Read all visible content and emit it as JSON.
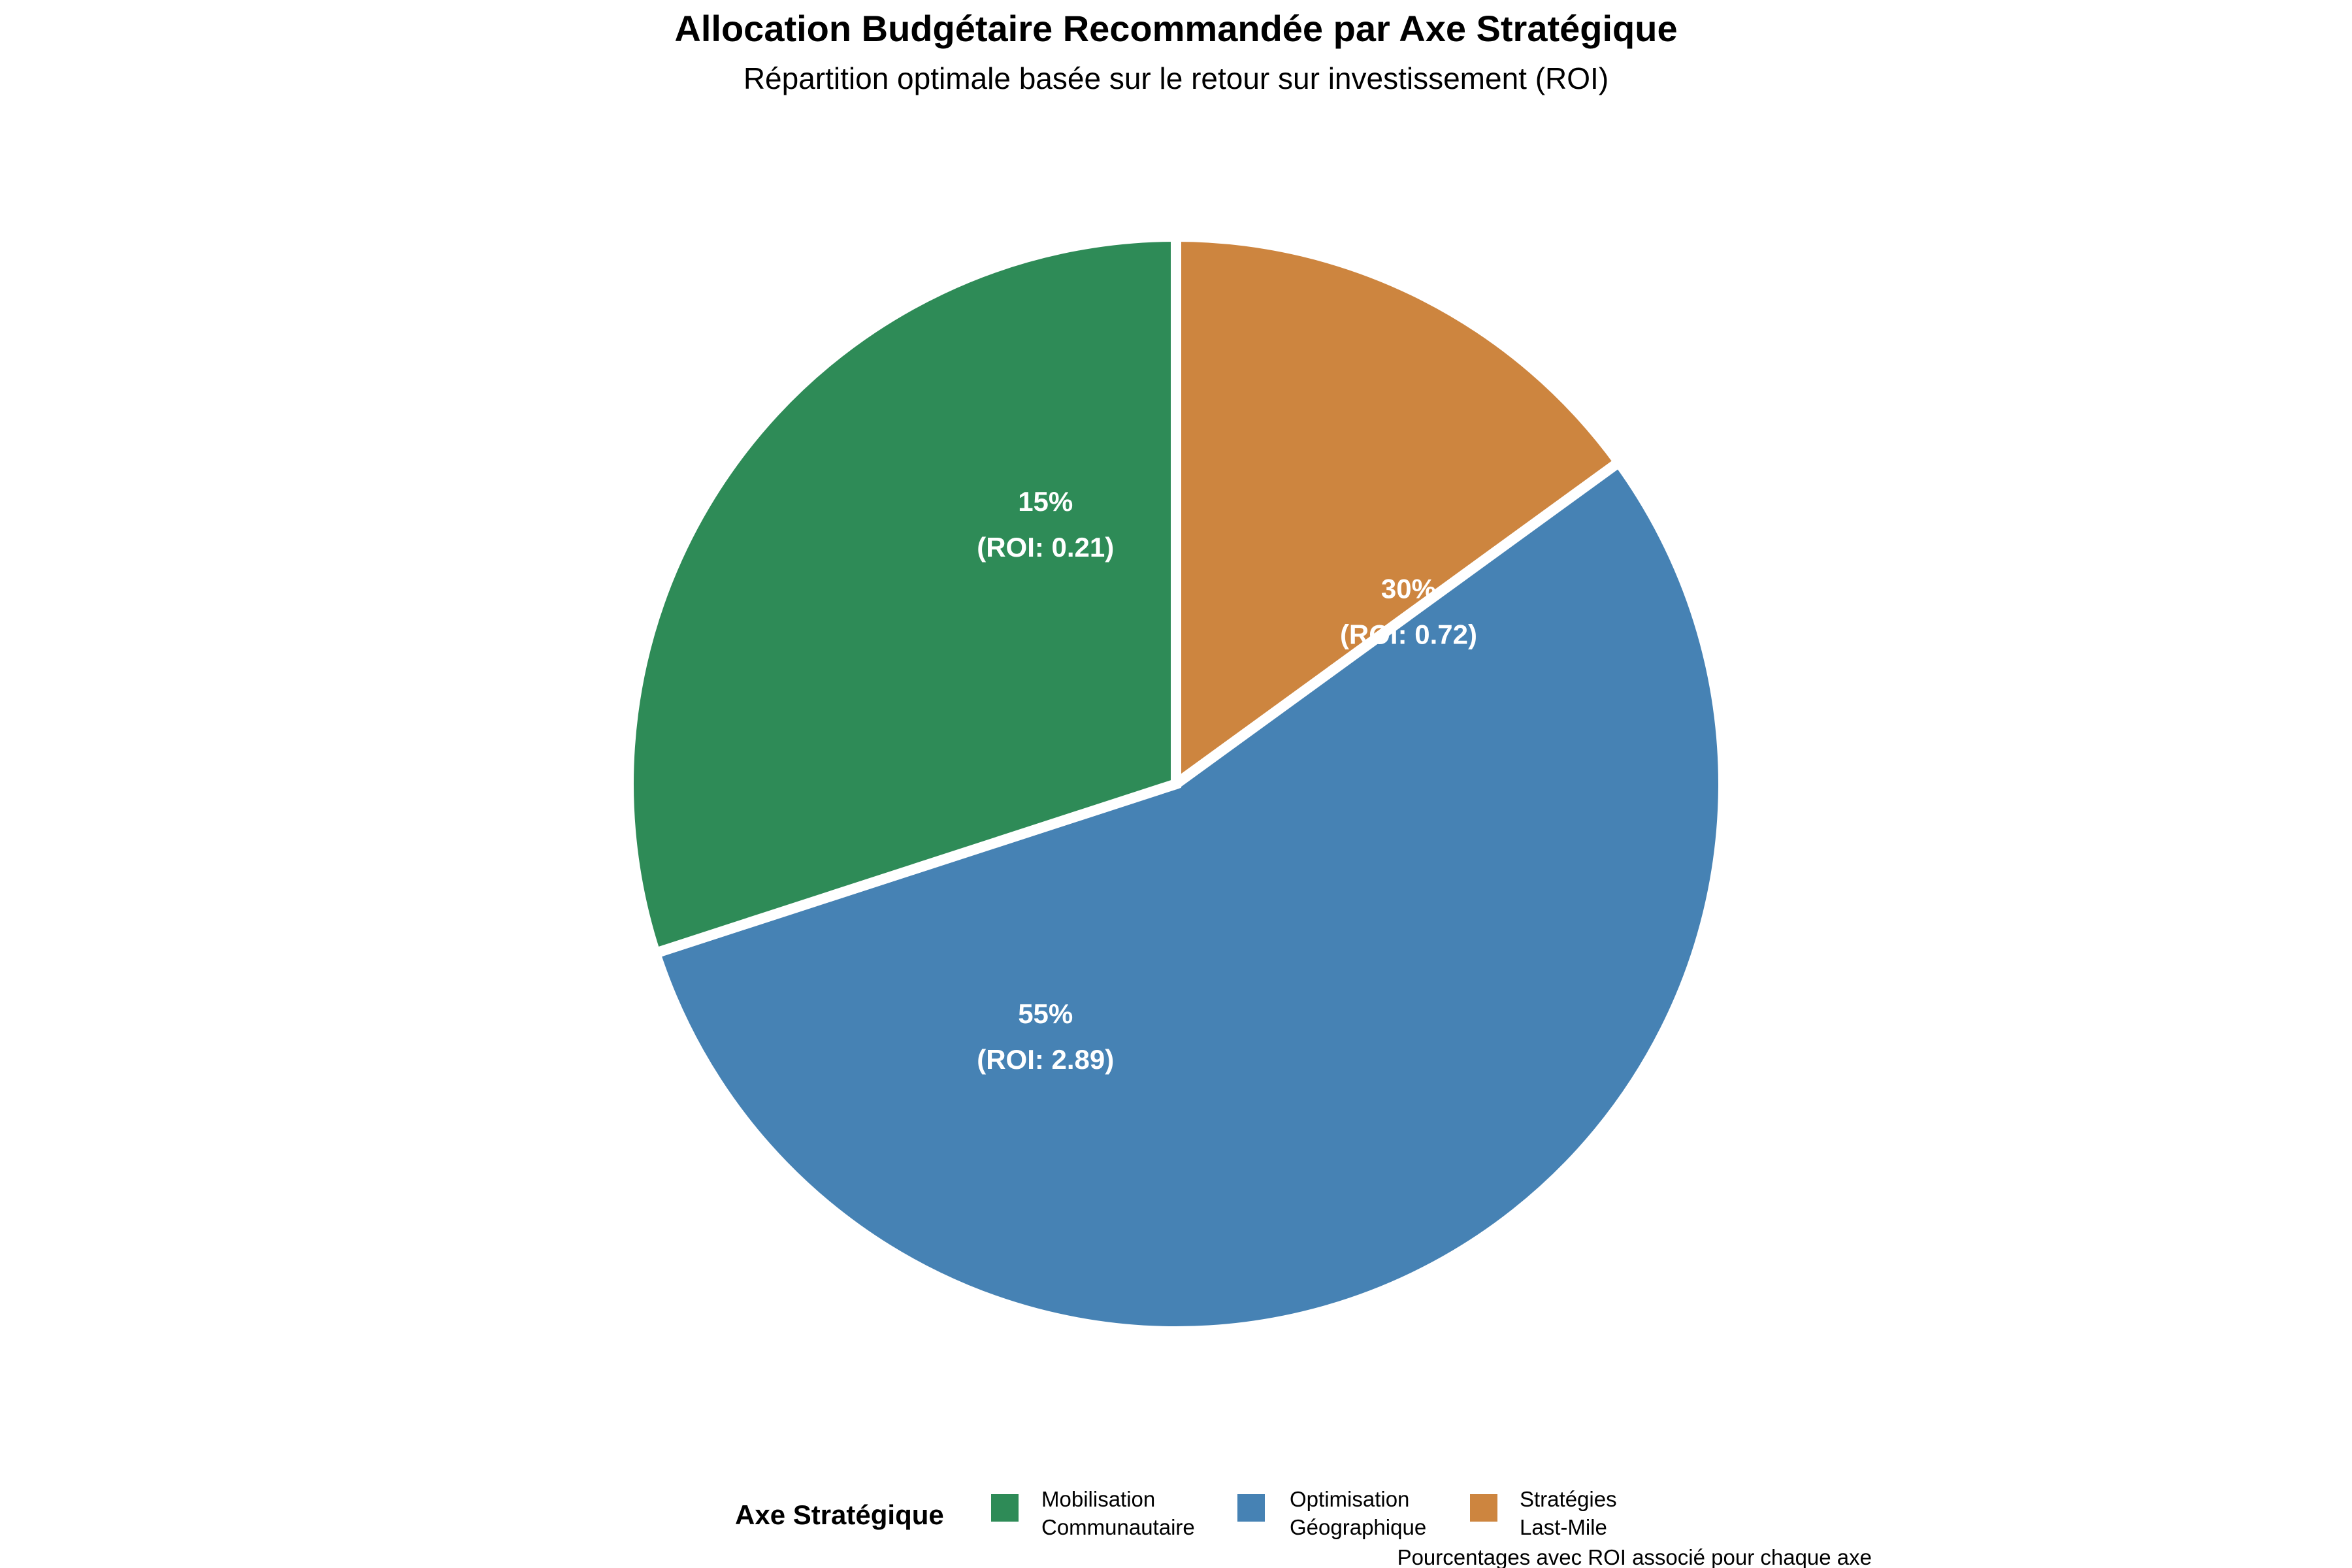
{
  "chart_data": {
    "type": "pie",
    "title": "Allocation Budgétaire Recommandée par Axe Stratégique",
    "subtitle": "Répartition optimale basée sur le retour sur investissement (ROI)",
    "slices": [
      {
        "name_lines": [
          "Stratégies",
          "Last-Mile"
        ],
        "value": 15,
        "percent_label": "15%",
        "roi_label": "(ROI: 0.21)",
        "color": "#cd853f"
      },
      {
        "name_lines": [
          "Optimisation",
          "Géographique"
        ],
        "value": 55,
        "percent_label": "55%",
        "roi_label": "(ROI: 2.89)",
        "color": "#4682b4"
      },
      {
        "name_lines": [
          "Mobilisation",
          "Communautaire"
        ],
        "value": 30,
        "percent_label": "30%",
        "roi_label": "(ROI: 0.72)",
        "color": "#2e8b57"
      }
    ],
    "legend": {
      "title": "Axe Stratégique",
      "placement": "bottom",
      "items": [
        {
          "lines": [
            "Mobilisation",
            "Communautaire"
          ],
          "color": "#2e8b57"
        },
        {
          "lines": [
            "Optimisation",
            "Géographique"
          ],
          "color": "#4682b4"
        },
        {
          "lines": [
            "Stratégies",
            "Last-Mile"
          ],
          "color": "#cd853f"
        }
      ]
    },
    "caption": "Pourcentages avec ROI associé pour chaque axe"
  }
}
